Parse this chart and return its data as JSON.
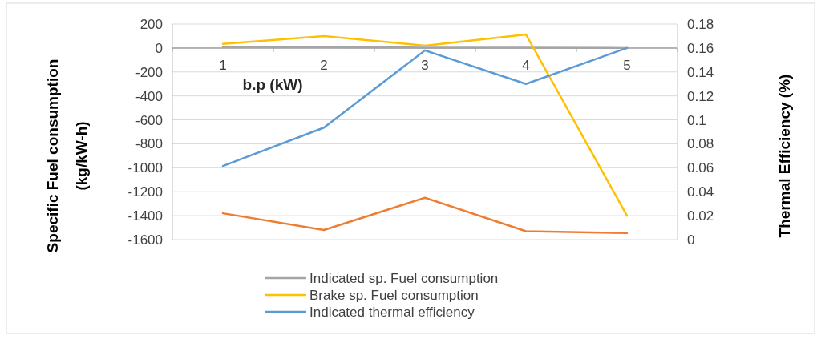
{
  "chart_data": {
    "type": "line",
    "categories": [
      "1",
      "2",
      "3",
      "4",
      "5"
    ],
    "xlabel": "b.p (kW)",
    "ylabel": "Specific Fuel consumption\n(kg/kW-h)",
    "y2label": "Thermal Efficiency (%)",
    "ylim": [
      -1600,
      200
    ],
    "yticks": [
      -1600,
      -1400,
      -1200,
      -1000,
      -800,
      -600,
      -400,
      -200,
      0,
      200
    ],
    "y2lim": [
      0,
      0.18
    ],
    "y2ticks": [
      0,
      0.02,
      0.04,
      0.06,
      0.08,
      0.1,
      0.12,
      0.14,
      0.16,
      0.18
    ],
    "grid": "y",
    "legend": "bottom",
    "line_style": "solid",
    "marker": "none",
    "series": [
      {
        "name": "Indicated sp. Fuel consumption",
        "color": "#a5a5a5",
        "values": [
          10,
          8,
          3,
          2,
          0
        ]
      },
      {
        "name": "Brake sp. Fuel consumption",
        "color": "#ffc000",
        "values": [
          35,
          100,
          20,
          113,
          -1400
        ]
      },
      {
        "name": "Indicated thermal efficiency",
        "color": "#5b9bd5",
        "axis": "y2",
        "values": [
          0.0615,
          0.0935,
          0.158,
          0.13,
          0.16
        ]
      },
      {
        "color": "#ed7d31",
        "axis": "y2",
        "values": [
          0.022,
          0.008,
          0.035,
          0.007,
          0.0055
        ]
      }
    ]
  }
}
